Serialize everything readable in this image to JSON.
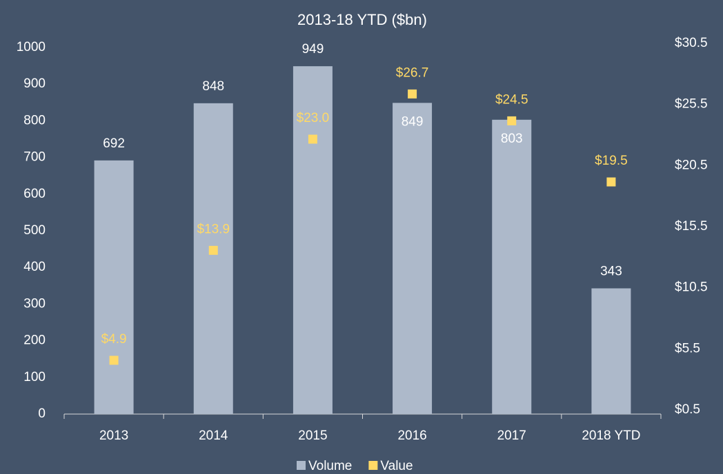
{
  "chart_data": {
    "type": "bar",
    "title": "2013-18 YTD ($bn)",
    "categories": [
      "2013",
      "2014",
      "2015",
      "2016",
      "2017",
      "2018 YTD"
    ],
    "series": [
      {
        "name": "Volume",
        "type": "bar",
        "color": "#adb9ca",
        "values": [
          692,
          848,
          949,
          849,
          803,
          343
        ]
      },
      {
        "name": "Value",
        "type": "scatter",
        "axis": "y2",
        "color": "#ffd966",
        "values": [
          4.9,
          13.9,
          23.0,
          26.7,
          24.5,
          19.5
        ],
        "value_labels": [
          "$4.9",
          "$13.9",
          "$23.0",
          "$26.7",
          "$24.5",
          "$19.5"
        ]
      }
    ],
    "ylim": [
      0,
      1000
    ],
    "yticks": [
      0,
      100,
      200,
      300,
      400,
      500,
      600,
      700,
      800,
      900,
      1000
    ],
    "y2lim": [
      0.5,
      30.5
    ],
    "y2ticks": [
      {
        "value": 0.5,
        "label": "$0.5"
      },
      {
        "value": 5.5,
        "label": "$5.5"
      },
      {
        "value": 10.5,
        "label": "$10.5"
      },
      {
        "value": 15.5,
        "label": "$15.5"
      },
      {
        "value": 20.5,
        "label": "$20.5"
      },
      {
        "value": 25.5,
        "label": "$25.5"
      },
      {
        "value": 30.5,
        "label": "$30.5"
      }
    ],
    "grid": false,
    "legend": "bottom"
  }
}
